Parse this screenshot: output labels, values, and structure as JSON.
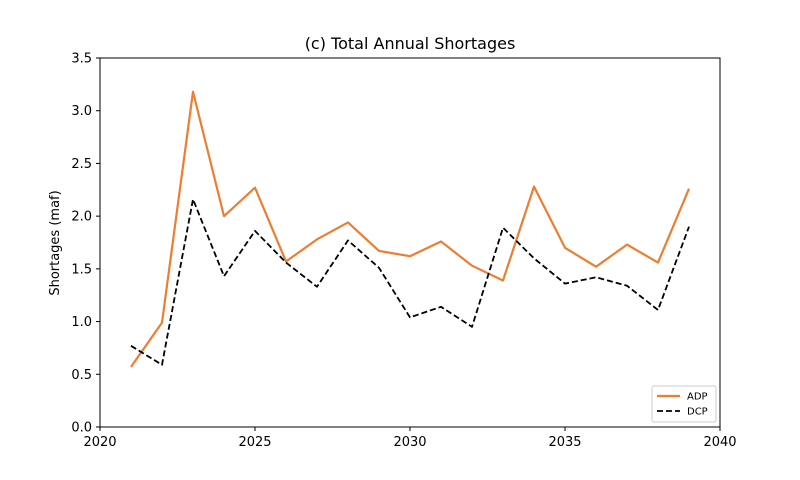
{
  "chart_data": {
    "type": "line",
    "title": "(c) Total Annual Shortages",
    "xlabel": "",
    "ylabel": "Shortages (maf)",
    "xlim": [
      2020,
      2040
    ],
    "ylim": [
      0,
      3.5
    ],
    "xticks": [
      2020,
      2025,
      2030,
      2035,
      2040
    ],
    "yticks": [
      0.0,
      0.5,
      1.0,
      1.5,
      2.0,
      2.5,
      3.0,
      3.5
    ],
    "ytick_labels": [
      "0.0",
      "0.5",
      "1.0",
      "1.5",
      "2.0",
      "2.5",
      "3.0",
      "3.5"
    ],
    "grid": false,
    "legend_position": "lower-right",
    "x": [
      2021,
      2022,
      2023,
      2024,
      2025,
      2026,
      2027,
      2028,
      2029,
      2030,
      2031,
      2032,
      2033,
      2034,
      2035,
      2036,
      2037,
      2038,
      2039
    ],
    "series": [
      {
        "name": "ADP",
        "color": "#ed7d31",
        "style": "solid",
        "values": [
          0.57,
          0.99,
          3.18,
          2.0,
          2.27,
          1.57,
          1.78,
          1.94,
          1.67,
          1.62,
          1.76,
          1.53,
          1.39,
          2.28,
          1.7,
          1.52,
          1.73,
          1.56,
          2.26
        ]
      },
      {
        "name": "DCP",
        "color": "#000000",
        "style": "dashed",
        "values": [
          0.77,
          0.59,
          2.16,
          1.43,
          1.86,
          1.56,
          1.33,
          1.77,
          1.51,
          1.04,
          1.14,
          0.95,
          1.89,
          1.6,
          1.36,
          1.42,
          1.34,
          1.11,
          1.9
        ]
      }
    ]
  }
}
